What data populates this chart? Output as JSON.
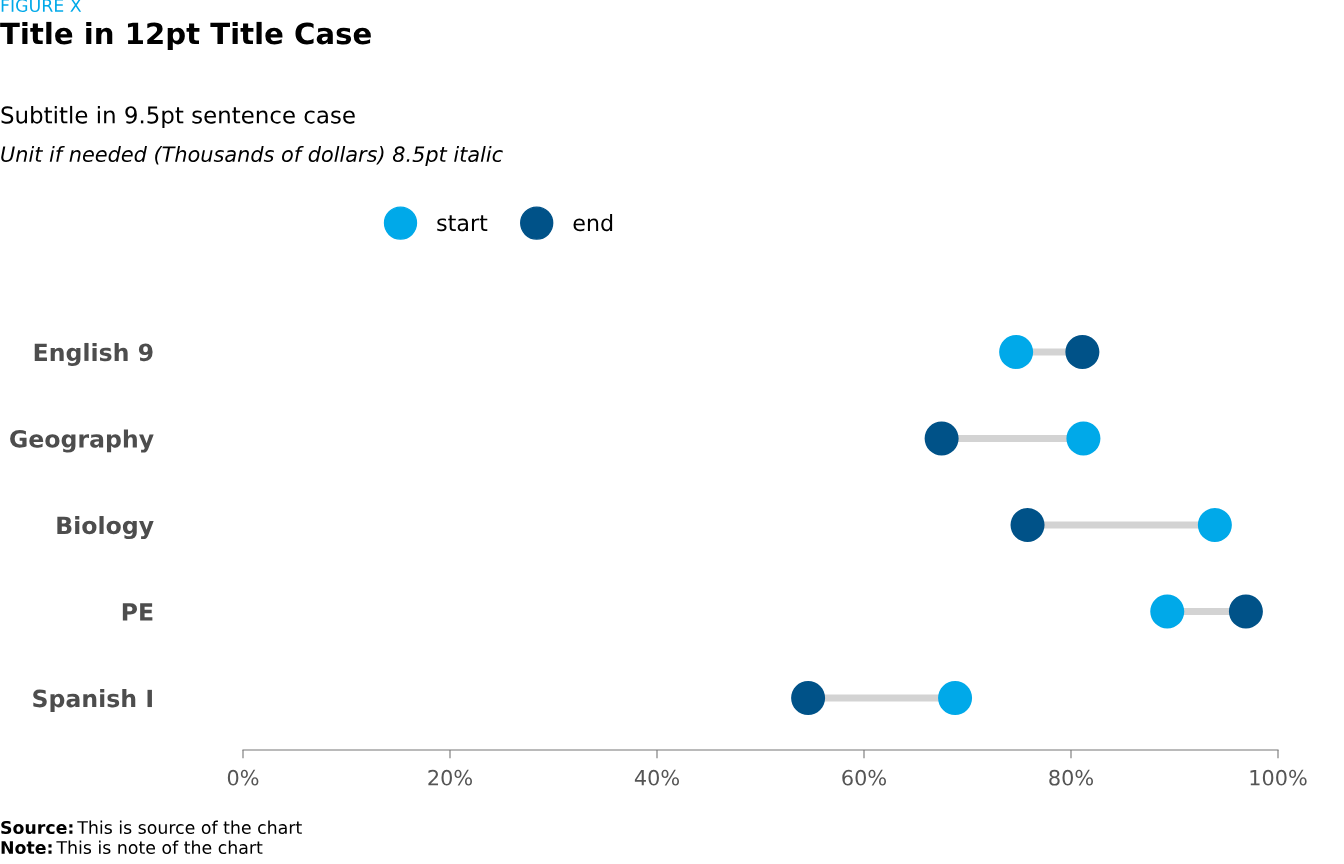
{
  "chart_data": {
    "type": "scatter",
    "orientation": "horizontal",
    "title": "Title in 12pt Title Case",
    "subtitle": "Subtitle in 9.5pt sentence case",
    "annotations": [
      "FIGURE X",
      "Unit if needed (Thousands of dollars) 8.5pt italic",
      "Source: This is source of the chart",
      "Note: This is note of the chart"
    ],
    "categories": [
      "English 9",
      "Geography",
      "Biology",
      "PE",
      "Spanish I"
    ],
    "series": [
      {
        "name": "start",
        "color": "#00a9e9",
        "values": [
          74.7,
          81.2,
          93.9,
          89.3,
          68.8
        ]
      },
      {
        "name": "end",
        "color": "#005288",
        "values": [
          81.1,
          67.5,
          75.8,
          96.9,
          54.6
        ]
      }
    ],
    "xlim": [
      0,
      100
    ],
    "xticks": [
      {
        "value": 0,
        "label": "0%"
      },
      {
        "value": 20,
        "label": "20%"
      },
      {
        "value": 40,
        "label": "40%"
      },
      {
        "value": 60,
        "label": "60%"
      },
      {
        "value": 80,
        "label": "80%"
      },
      {
        "value": 100,
        "label": "100%"
      }
    ],
    "marker": "circle",
    "legend": "top",
    "grid": false
  }
}
